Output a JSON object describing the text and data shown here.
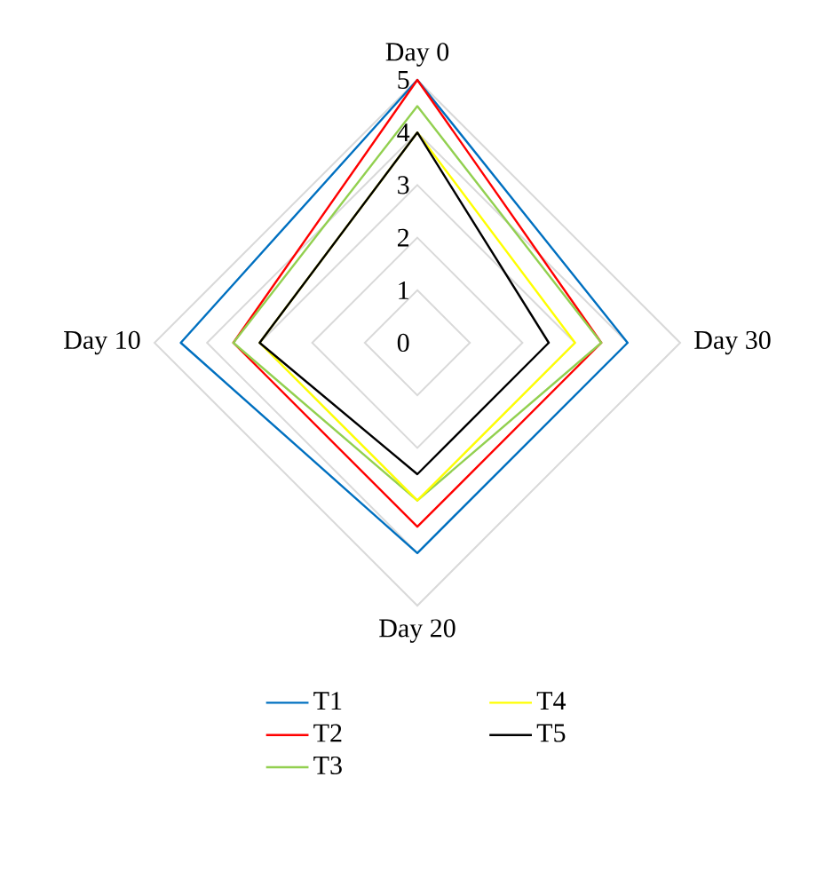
{
  "chart_data": {
    "type": "radar",
    "categories": [
      "Day 0",
      "Day 30",
      "Day 20",
      "Day 10"
    ],
    "series": [
      {
        "name": "T1",
        "color": "#0070c0",
        "values": [
          5,
          4,
          4,
          4.5
        ]
      },
      {
        "name": "T2",
        "color": "#ff0000",
        "values": [
          5,
          3.5,
          3.5,
          3.5
        ]
      },
      {
        "name": "T3",
        "color": "#92d050",
        "values": [
          4.5,
          3.5,
          3,
          3.5
        ]
      },
      {
        "name": "T4",
        "color": "#ffff00",
        "values": [
          4,
          3,
          3,
          3
        ]
      },
      {
        "name": "T5",
        "color": "#000000",
        "values": [
          4,
          2.5,
          2.5,
          3
        ]
      }
    ],
    "ylim": [
      0,
      5
    ],
    "yticks": [
      0,
      1,
      2,
      3,
      4,
      5
    ],
    "grid": true,
    "legend": "bottom"
  }
}
